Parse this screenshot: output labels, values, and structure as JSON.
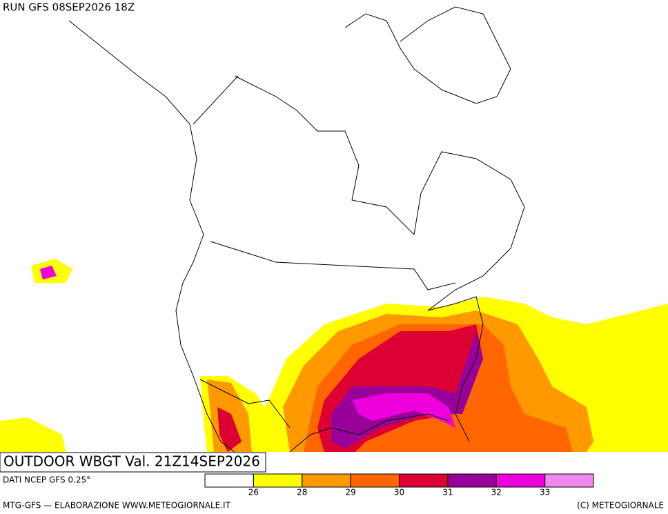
{
  "header": {
    "run": "RUN GFS 08SEP2026 18Z"
  },
  "map_title": "OUTDOOR WBGT Val. 21Z14SEP2026",
  "footer": {
    "source": "DATI NCEP GFS 0.25°",
    "credit": "MTG-GFS — ELABORAZIONE WWW.METEOGIORNALE.IT",
    "copyright": "(C) METEOGIORNALE"
  },
  "legend": {
    "colors": [
      "#ffffff",
      "#ffff00",
      "#ff9900",
      "#ff6600",
      "#dd0033",
      "#990099",
      "#ee00dd",
      "#ee88ee"
    ],
    "thresholds": [
      26,
      28,
      29,
      30,
      31,
      32,
      33
    ]
  }
}
